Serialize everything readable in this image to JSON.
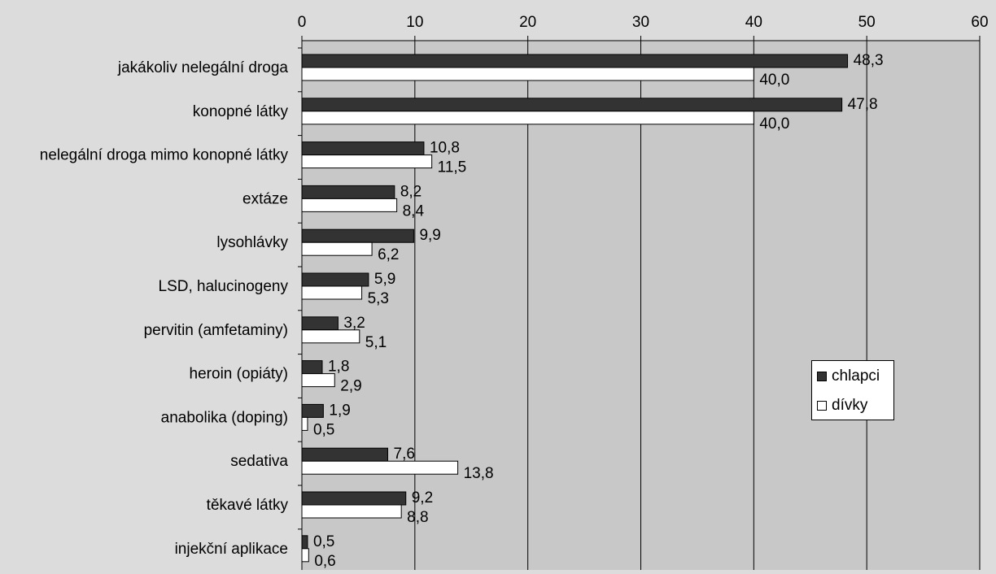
{
  "chart_data": {
    "type": "bar",
    "orientation": "horizontal",
    "categories": [
      "jakákoliv nelegální droga",
      "konopné látky",
      "nelegální droga mimo konopné látky",
      "extáze",
      "lysohlávky",
      "LSD, halucinogeny",
      "pervitin (amfetaminy)",
      "heroin (opiáty)",
      "anabolika (doping)",
      "sedativa",
      "těkavé látky",
      "injekční aplikace"
    ],
    "series": [
      {
        "name": "chlapci",
        "color": "#333333",
        "values": [
          48.3,
          47.8,
          10.8,
          8.2,
          9.9,
          5.9,
          3.2,
          1.8,
          1.9,
          7.6,
          9.2,
          0.5
        ],
        "labels": [
          "48,3",
          "47,8",
          "10,8",
          "8,2",
          "9,9",
          "5,9",
          "3,2",
          "1,8",
          "1,9",
          "7,6",
          "9,2",
          "0,5"
        ]
      },
      {
        "name": "dívky",
        "color": "#ffffff",
        "values": [
          40.0,
          40.0,
          11.5,
          8.4,
          6.2,
          5.3,
          5.1,
          2.9,
          0.5,
          13.8,
          8.8,
          0.6
        ],
        "labels": [
          "40,0",
          "40,0",
          "11,5",
          "8,4",
          "6,2",
          "5,3",
          "5,1",
          "2,9",
          "0,5",
          "13,8",
          "8,8",
          "0,6"
        ]
      }
    ],
    "xlim": [
      0,
      60
    ],
    "xticks": [
      "0",
      "10",
      "20",
      "30",
      "40",
      "50",
      "60"
    ],
    "grid": true,
    "legend_position": "right-middle",
    "colors": {
      "background": "#dcdcdc",
      "plot_area": "#c8c8c8",
      "grid": "#000000"
    }
  }
}
